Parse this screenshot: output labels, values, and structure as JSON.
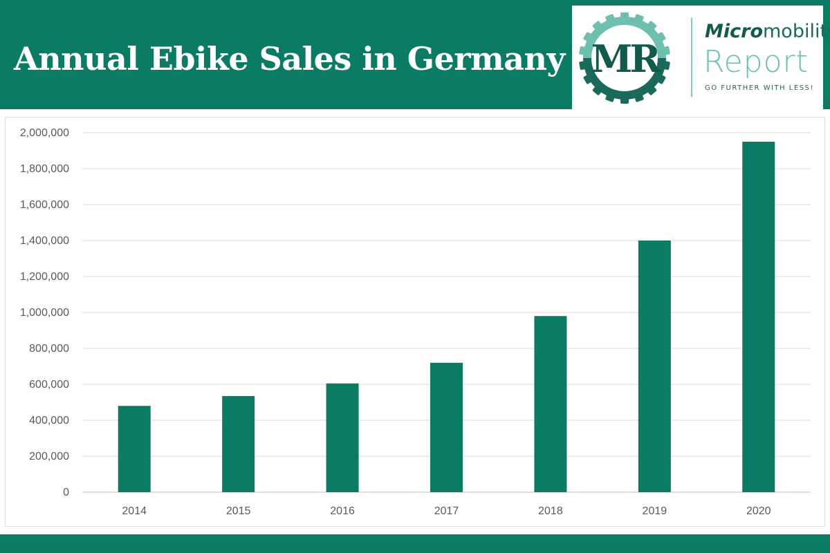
{
  "header": {
    "title": "Annual Ebike Sales in Germany",
    "background_color": "#0c7b63",
    "title_color": "#ffffff"
  },
  "logo": {
    "monogram": "MR",
    "word_micro": "Micro",
    "word_mobility": "mobility",
    "word_report": "Report",
    "tagline": "GO FURTHER WITH LESS!",
    "icon": "gear-icon",
    "primary_color": "#1a6a5a",
    "accent_color": "#6fbfae"
  },
  "chart_data": {
    "type": "bar",
    "title": "",
    "xlabel": "",
    "ylabel": "",
    "categories": [
      "2014",
      "2015",
      "2016",
      "2017",
      "2018",
      "2019",
      "2020"
    ],
    "values": [
      480000,
      535000,
      605000,
      720000,
      980000,
      1400000,
      1950000
    ],
    "ylim": [
      0,
      2000000
    ],
    "yticks": [
      0,
      200000,
      400000,
      600000,
      800000,
      1000000,
      1200000,
      1400000,
      1600000,
      1800000,
      2000000
    ],
    "ytick_labels": [
      "0",
      "200,000",
      "400,000",
      "600,000",
      "800,000",
      "1,000,000",
      "1,200,000",
      "1,400,000",
      "1,600,000",
      "1,800,000",
      "2,000,000"
    ],
    "grid": true,
    "legend": "none",
    "bar_color": "#0c7b63"
  },
  "footer": {
    "background_color": "#0c7b63"
  }
}
